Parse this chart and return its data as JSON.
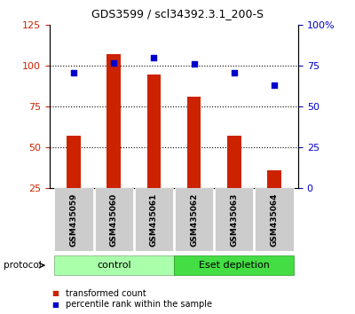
{
  "title": "GDS3599 / scl34392.3.1_200-S",
  "samples": [
    "GSM435059",
    "GSM435060",
    "GSM435061",
    "GSM435062",
    "GSM435063",
    "GSM435064"
  ],
  "transformed_counts": [
    57,
    107,
    95,
    81,
    57,
    36
  ],
  "percentile_ranks": [
    71,
    77,
    80,
    76,
    71,
    63
  ],
  "left_ylim": [
    25,
    125
  ],
  "left_yticks": [
    25,
    50,
    75,
    100,
    125
  ],
  "right_ylim": [
    0,
    100
  ],
  "right_yticks": [
    0,
    25,
    50,
    75,
    100
  ],
  "right_yticklabels": [
    "0",
    "25",
    "50",
    "75",
    "100%"
  ],
  "bar_color": "#cc2200",
  "dot_color": "#0000cc",
  "hline_values": [
    50,
    75,
    100
  ],
  "control_label": "control",
  "depletion_label": "Eset depletion",
  "control_color": "#aaffaa",
  "depletion_color": "#44dd44",
  "group_bg_color": "#cccccc",
  "protocol_label": "protocol",
  "legend_bar_label": "transformed count",
  "legend_dot_label": "percentile rank within the sample",
  "bar_bottom": 25,
  "bar_width": 0.35
}
